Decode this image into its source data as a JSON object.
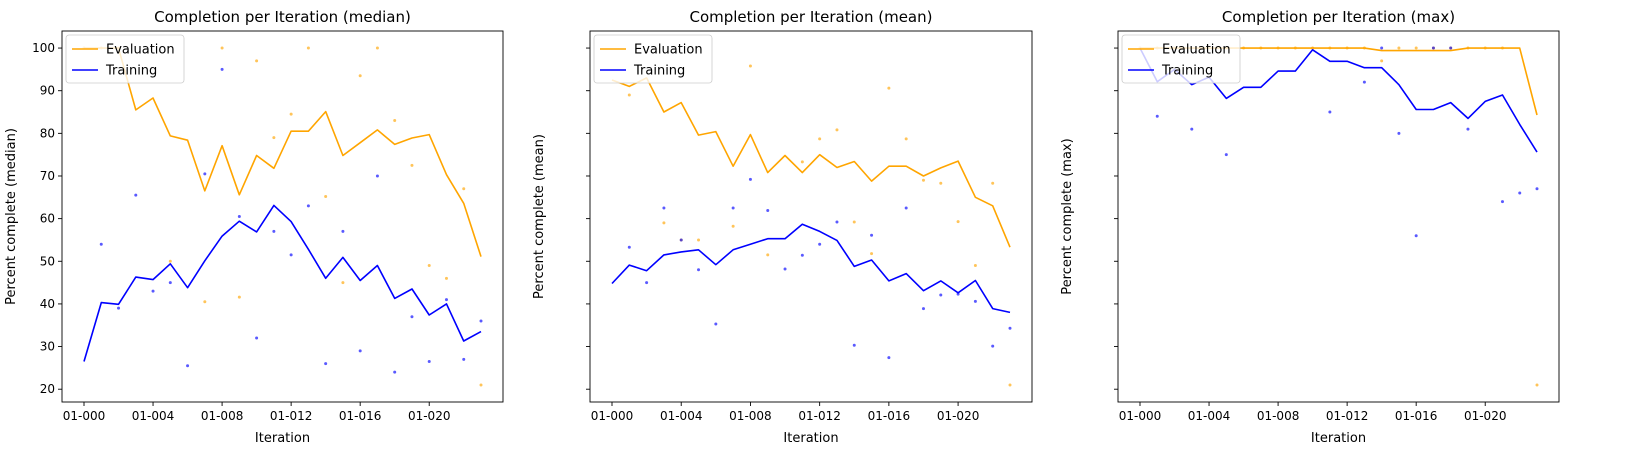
{
  "chart_data": [
    {
      "type": "line",
      "title": "Completion per Iteration (median)",
      "xlabel": "Iteration",
      "ylabel": "Percent complete (median)",
      "ylim": [
        17,
        104
      ],
      "yticks": [
        20,
        30,
        40,
        50,
        60,
        70,
        80,
        90,
        100
      ],
      "ytick_labels_shown": true,
      "x_categories": [
        "01-000",
        "01-001",
        "01-002",
        "01-003",
        "01-004",
        "01-005",
        "01-006",
        "01-007",
        "01-008",
        "01-009",
        "01-010",
        "01-011",
        "01-012",
        "01-013",
        "01-014",
        "01-015",
        "01-016",
        "01-017",
        "01-018",
        "01-019",
        "01-020",
        "01-021",
        "01-022",
        "01-023"
      ],
      "xtick_labels": [
        "01-000",
        "01-004",
        "01-008",
        "01-012",
        "01-016",
        "01-020"
      ],
      "legend": "top-left",
      "series": [
        {
          "name": "Evaluation",
          "color": "#ffa500",
          "values": [
            100,
            100,
            100,
            85.5,
            88.3,
            79.4,
            78.4,
            66.5,
            77.1,
            65.6,
            74.8,
            71.8,
            80.5,
            80.5,
            85.1,
            74.8,
            77.8,
            80.8,
            77.4,
            78.9,
            79.7,
            70.3,
            63.6,
            51.1
          ],
          "points": [
            100,
            100,
            100,
            null,
            null,
            50,
            null,
            40.5,
            100,
            41.6,
            97,
            79,
            84.5,
            100,
            65.2,
            45,
            93.5,
            100,
            83,
            72.5,
            49,
            46,
            67,
            21
          ]
        },
        {
          "name": "Training",
          "color": "#0000ff",
          "values": [
            26.5,
            40.3,
            39.9,
            46.3,
            45.7,
            49.4,
            43.8,
            50.1,
            55.9,
            59.4,
            56.9,
            63.1,
            59.3,
            52.8,
            46,
            50.9,
            45.5,
            49,
            41.3,
            43.5,
            37.4,
            40,
            31.3,
            33.5
          ],
          "points": [
            null,
            54,
            39,
            65.5,
            43,
            45,
            25.5,
            70.5,
            95,
            60.5,
            32,
            57,
            51.5,
            63,
            26,
            57,
            29,
            70,
            24,
            37,
            26.5,
            41,
            27,
            36
          ]
        }
      ]
    },
    {
      "type": "line",
      "title": "Completion per Iteration (mean)",
      "xlabel": "Iteration",
      "ylabel": "Percent complete (mean)",
      "ylim": [
        17,
        104
      ],
      "yticks": [
        20,
        30,
        40,
        50,
        60,
        70,
        80,
        90,
        100
      ],
      "ytick_labels_shown": false,
      "x_categories": [
        "01-000",
        "01-001",
        "01-002",
        "01-003",
        "01-004",
        "01-005",
        "01-006",
        "01-007",
        "01-008",
        "01-009",
        "01-010",
        "01-011",
        "01-012",
        "01-013",
        "01-014",
        "01-015",
        "01-016",
        "01-017",
        "01-018",
        "01-019",
        "01-020",
        "01-021",
        "01-022",
        "01-023"
      ],
      "xtick_labels": [
        "01-000",
        "01-004",
        "01-008",
        "01-012",
        "01-016",
        "01-020"
      ],
      "legend": "top-left",
      "series": [
        {
          "name": "Evaluation",
          "color": "#ffa500",
          "values": [
            92.5,
            91,
            93,
            85,
            87.2,
            79.6,
            80.4,
            72.3,
            79.7,
            70.8,
            74.8,
            70.8,
            75,
            72,
            73.4,
            68.8,
            72.3,
            72.3,
            70,
            71.9,
            73.5,
            65,
            63,
            53.3
          ],
          "points": [
            null,
            89,
            null,
            59,
            55,
            55,
            null,
            58.2,
            95.8,
            51.5,
            null,
            73.3,
            78.7,
            80.8,
            59.2,
            51.8,
            90.6,
            78.7,
            69,
            68.3,
            59.3,
            49,
            68.3,
            21
          ]
        },
        {
          "name": "Training",
          "color": "#0000ff",
          "values": [
            44.8,
            49.1,
            47.8,
            51.5,
            52.2,
            52.7,
            49.2,
            52.7,
            54,
            55.3,
            55.3,
            58.7,
            57,
            54.9,
            48.8,
            50.3,
            45.4,
            47.1,
            43.1,
            45.4,
            42.6,
            45.5,
            38.9,
            38
          ],
          "points": [
            null,
            53.3,
            45,
            62.5,
            55,
            48,
            35.3,
            62.5,
            69.2,
            61.9,
            48.2,
            51.4,
            54,
            59.2,
            30.3,
            56.1,
            27.4,
            62.5,
            38.9,
            42.1,
            42.3,
            40.6,
            30.1,
            34.3
          ]
        }
      ]
    },
    {
      "type": "line",
      "title": "Completion per Iteration (max)",
      "xlabel": "Iteration",
      "ylabel": "Percent complete (max)",
      "ylim": [
        17,
        104
      ],
      "yticks": [
        20,
        30,
        40,
        50,
        60,
        70,
        80,
        90,
        100
      ],
      "ytick_labels_shown": false,
      "x_categories": [
        "01-000",
        "01-001",
        "01-002",
        "01-003",
        "01-004",
        "01-005",
        "01-006",
        "01-007",
        "01-008",
        "01-009",
        "01-010",
        "01-011",
        "01-012",
        "01-013",
        "01-014",
        "01-015",
        "01-016",
        "01-017",
        "01-018",
        "01-019",
        "01-020",
        "01-021",
        "01-022",
        "01-023"
      ],
      "xtick_labels": [
        "01-000",
        "01-004",
        "01-008",
        "01-012",
        "01-016",
        "01-020"
      ],
      "legend": "top-left",
      "series": [
        {
          "name": "Evaluation",
          "color": "#ffa500",
          "values": [
            100,
            100,
            100,
            100,
            100,
            100,
            100,
            100,
            100,
            100,
            100,
            100,
            100,
            100,
            99.4,
            99.4,
            99.4,
            99.4,
            99.4,
            100,
            100,
            100,
            100,
            84.3
          ],
          "points": [
            100,
            100,
            100,
            null,
            null,
            100,
            100,
            100,
            100,
            100,
            100,
            100,
            100,
            100,
            97,
            100,
            100,
            100,
            100,
            100,
            100,
            100,
            null,
            21
          ]
        },
        {
          "name": "Training",
          "color": "#0000ff",
          "values": [
            100,
            92.1,
            95,
            91.4,
            93.2,
            88.2,
            90.8,
            90.8,
            94.6,
            94.6,
            99.6,
            96.9,
            96.9,
            95.4,
            95.4,
            91.4,
            85.6,
            85.6,
            87.2,
            83.5,
            87.5,
            89,
            82.1,
            75.6
          ],
          "points": [
            null,
            84,
            null,
            81,
            null,
            75,
            null,
            null,
            null,
            null,
            null,
            85,
            null,
            92,
            100,
            80,
            56,
            100,
            100,
            81,
            null,
            64,
            66,
            67
          ]
        }
      ]
    }
  ]
}
